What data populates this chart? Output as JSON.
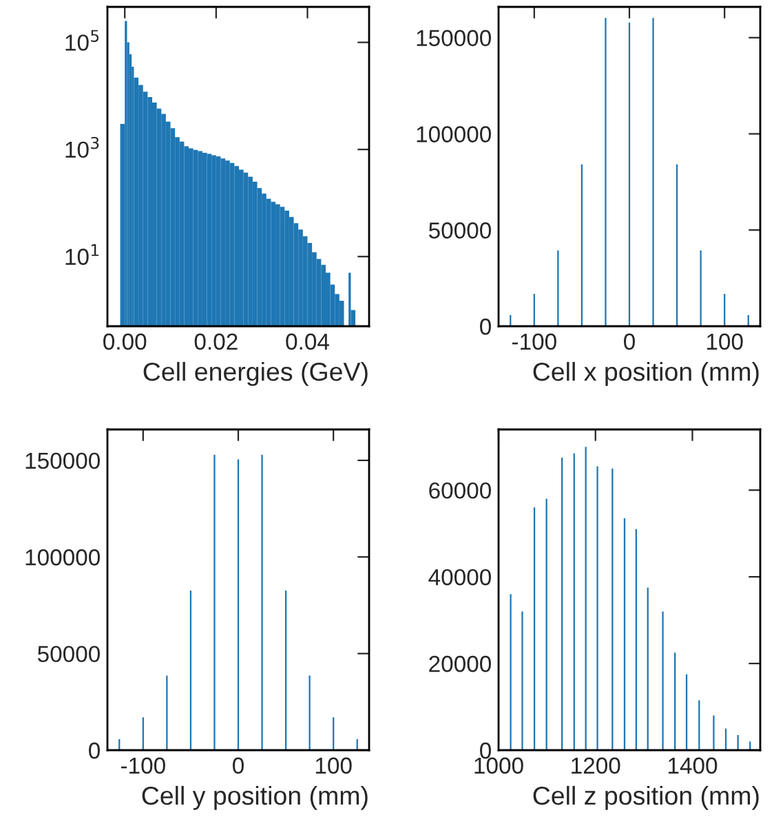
{
  "chart_data": [
    {
      "type": "histogram",
      "xlabel": "Cell energies (GeV)",
      "color": "#1f77b4",
      "log": "y",
      "bins": [
        -0.001,
        0,
        0.0005,
        0.001,
        0.0015,
        0.002,
        0.003,
        0.004,
        0.005,
        0.006,
        0.007,
        0.008,
        0.009,
        0.01,
        0.011,
        0.012,
        0.013,
        0.014,
        0.015,
        0.016,
        0.017,
        0.018,
        0.019,
        0.02,
        0.021,
        0.022,
        0.023,
        0.024,
        0.025,
        0.026,
        0.027,
        0.028,
        0.029,
        0.03,
        0.031,
        0.032,
        0.033,
        0.034,
        0.035,
        0.036,
        0.037,
        0.038,
        0.039,
        0.04,
        0.041,
        0.042,
        0.043,
        0.044,
        0.045,
        0.046,
        0.047,
        0.048,
        0.049,
        0.0495,
        0.0505
      ],
      "values": [
        3000,
        250000,
        100000,
        60000,
        35000,
        22000,
        16000,
        12000,
        9500,
        7500,
        5800,
        4600,
        3300,
        2500,
        1700,
        1400,
        1150,
        1050,
        980,
        930,
        870,
        830,
        780,
        740,
        680,
        620,
        560,
        490,
        420,
        370,
        310,
        250,
        190,
        150,
        120,
        105,
        95,
        85,
        72,
        55,
        42,
        32,
        24,
        18,
        12,
        9,
        7,
        5,
        3,
        2,
        1.5,
        null,
        5,
        1
      ],
      "xlim": [
        -0.0038,
        0.0535
      ],
      "xticks": [
        {
          "value": 0,
          "label": "0.00"
        },
        {
          "value": 0.02,
          "label": "0.02"
        },
        {
          "value": 0.04,
          "label": "0.04"
        }
      ],
      "ylim": [
        0.5,
        460000
      ],
      "yticks": [
        {
          "value": 10,
          "label": "10$^{1}$"
        },
        {
          "value": 1000,
          "label": "10$^{3}$"
        },
        {
          "value": 100000,
          "label": "10$^{5}$"
        }
      ],
      "grid": false
    },
    {
      "type": "bar",
      "xlabel": "Cell x position (mm)",
      "color": "#1f77b4",
      "x": [
        -125,
        -100,
        -75,
        -50,
        -25,
        0,
        25,
        50,
        75,
        100,
        125
      ],
      "values": [
        5800,
        16800,
        39400,
        84100,
        160300,
        157900,
        160300,
        84100,
        39400,
        16800,
        5800
      ],
      "xlim": [
        -137.5,
        137.5
      ],
      "xticks": [
        -100,
        0,
        100
      ],
      "ylim": [
        0,
        166000
      ],
      "yticks": [
        0,
        50000,
        100000,
        150000
      ],
      "grid": false
    },
    {
      "type": "bar",
      "xlabel": "Cell y position (mm)",
      "color": "#1f77b4",
      "x": [
        -125,
        -100,
        -75,
        -50,
        -25,
        0,
        25,
        50,
        75,
        100,
        125
      ],
      "values": [
        5700,
        17000,
        38600,
        82600,
        152900,
        150500,
        152900,
        82600,
        38600,
        17000,
        5700
      ],
      "xlim": [
        -137.5,
        137.5
      ],
      "xticks": [
        -100,
        0,
        100
      ],
      "ylim": [
        0,
        166000
      ],
      "yticks": [
        0,
        50000,
        100000,
        150000
      ],
      "grid": false
    },
    {
      "type": "bar",
      "xlabel": "Cell z position (mm)",
      "color": "#1f77b4",
      "x": [
        1025,
        1049,
        1074,
        1099,
        1131,
        1156,
        1180,
        1204,
        1235,
        1260,
        1284,
        1308,
        1339,
        1364,
        1388,
        1414,
        1444,
        1469,
        1494,
        1519
      ],
      "values": [
        36000,
        32000,
        56000,
        58000,
        67500,
        68500,
        70000,
        65500,
        65000,
        53500,
        51000,
        37500,
        32000,
        22500,
        17500,
        11500,
        8000,
        5000,
        3500,
        2000
      ],
      "xlim": [
        1000,
        1540
      ],
      "xticks": [
        1000,
        1200,
        1400
      ],
      "ylim": [
        0,
        74000
      ],
      "yticks": [
        0,
        20000,
        40000,
        60000
      ],
      "grid": false
    }
  ]
}
